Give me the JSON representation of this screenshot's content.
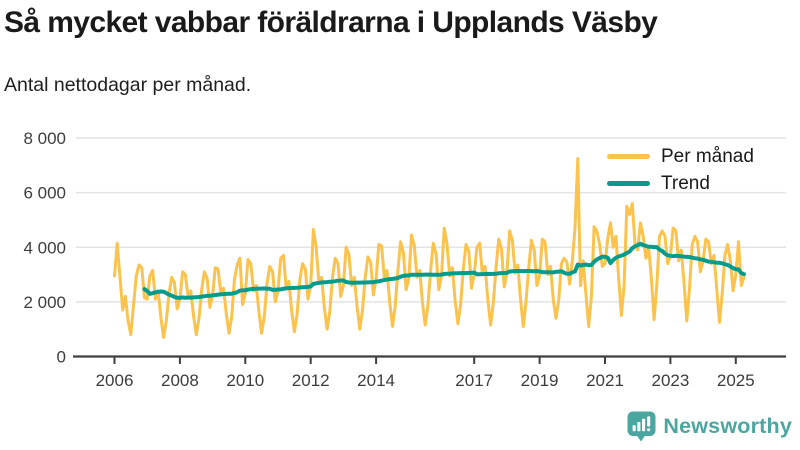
{
  "header": {
    "title": "Så mycket vabbar föräldrarna i Upplands Väsby",
    "subtitle": "Antal nettodagar per månad."
  },
  "legend": {
    "items": [
      {
        "label": "Per månad",
        "color": "#FBC34E"
      },
      {
        "label": "Trend",
        "color": "#039B8C"
      }
    ]
  },
  "footer": {
    "brand": "Newsworthy",
    "brand_color": "#4CA6A0",
    "brand_icon": "bar-chart-speech-bubble-icon"
  },
  "chart_data": {
    "type": "line",
    "title": "Så mycket vabbar föräldrarna i Upplands Väsby",
    "subtitle": "Antal nettodagar per månad.",
    "xlabel": "",
    "ylabel": "",
    "x_start": {
      "year": 2006,
      "month": 1
    },
    "x_end": {
      "year": 2025,
      "month": 4
    },
    "frequency": "monthly",
    "ylim": [
      0,
      8000
    ],
    "y_ticks": [
      0,
      2000,
      4000,
      6000,
      8000
    ],
    "y_tick_labels": [
      "0",
      "2 000",
      "4 000",
      "6 000",
      "8 000"
    ],
    "x_ticks": [
      2006,
      2008,
      2010,
      2012,
      2014,
      2017,
      2019,
      2021,
      2023,
      2025
    ],
    "x_tick_labels": [
      "2006",
      "2008",
      "2010",
      "2012",
      "2014",
      "2017",
      "2019",
      "2021",
      "2023",
      "2025"
    ],
    "grid": "horizontal",
    "legend_position": "top-right",
    "series": [
      {
        "name": "Per månad",
        "color": "#FBC34E",
        "values": [
          2950,
          4150,
          2900,
          1700,
          2200,
          1300,
          800,
          1900,
          2950,
          3350,
          3250,
          2150,
          2100,
          2950,
          3150,
          2100,
          2400,
          1450,
          700,
          1300,
          2300,
          2900,
          2700,
          1750,
          2100,
          3100,
          3000,
          2200,
          2400,
          1500,
          800,
          1400,
          2450,
          3100,
          2850,
          1800,
          2250,
          3250,
          3200,
          2300,
          2500,
          1600,
          850,
          1450,
          2800,
          3350,
          3600,
          1900,
          2300,
          3550,
          3400,
          2400,
          2600,
          1650,
          850,
          1500,
          2700,
          3300,
          3100,
          2000,
          2400,
          3600,
          3700,
          2500,
          2750,
          1700,
          900,
          1550,
          2800,
          3400,
          3200,
          2100,
          2600,
          4650,
          4000,
          2700,
          2900,
          1800,
          1000,
          1650,
          2900,
          3600,
          3400,
          2200,
          2600,
          4000,
          3750,
          2600,
          2900,
          1850,
          1000,
          1700,
          2900,
          3650,
          3450,
          2250,
          2850,
          4100,
          4050,
          2900,
          3150,
          2000,
          1100,
          1850,
          3150,
          4200,
          3800,
          2450,
          2850,
          4450,
          4050,
          2900,
          3150,
          2000,
          1150,
          1850,
          3150,
          4150,
          3750,
          2450,
          2950,
          4700,
          4150,
          2950,
          3250,
          2050,
          1200,
          1900,
          3200,
          4100,
          3850,
          2500,
          3000,
          4000,
          4150,
          3000,
          3300,
          2100,
          1150,
          1950,
          3250,
          4300,
          3950,
          2550,
          3050,
          4600,
          4250,
          3050,
          3350,
          2100,
          1100,
          2000,
          3250,
          4250,
          3900,
          2600,
          2950,
          4300,
          4200,
          3000,
          3300,
          2100,
          1400,
          2050,
          3400,
          3600,
          3450,
          2650,
          3500,
          4700,
          7250,
          2600,
          3500,
          2300,
          1100,
          2200,
          4750,
          4600,
          4100,
          3300,
          3400,
          4300,
          4900,
          4000,
          4400,
          2900,
          1500,
          2600,
          5500,
          5200,
          5600,
          4100,
          3900,
          4900,
          4400,
          3600,
          4000,
          2900,
          1350,
          2600,
          4400,
          4600,
          4400,
          3400,
          3700,
          4700,
          4600,
          3500,
          3900,
          2700,
          1300,
          2500,
          4100,
          4400,
          4200,
          3100,
          3500,
          4300,
          4200,
          3400,
          3700,
          2500,
          1250,
          2300,
          3700,
          4100,
          3500,
          2400,
          3000,
          4200,
          2600,
          2900
        ]
      },
      {
        "name": "Trend",
        "color": "#039B8C",
        "derived": "12-month trailing moving average of 'Per månad'",
        "trend_window_months": 12
      }
    ]
  }
}
